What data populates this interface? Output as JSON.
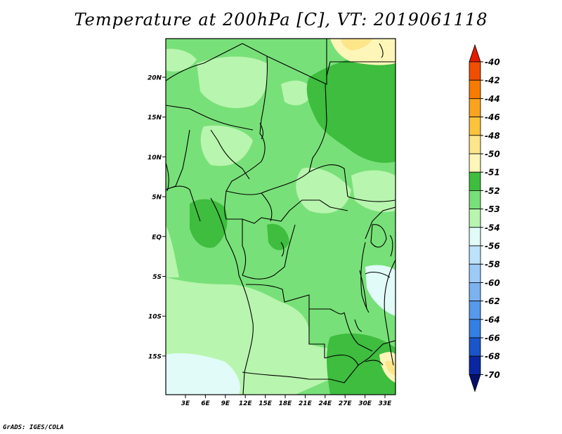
{
  "title": "Temperature at 200hPa [C], VT: 2019061118",
  "credit": "GrADS: IGES/COLA",
  "map": {
    "lat_labels": [
      "20N",
      "15N",
      "10N",
      "5N",
      "EQ",
      "5S",
      "10S",
      "15S"
    ],
    "lon_labels": [
      "3E",
      "6E",
      "9E",
      "12E",
      "15E",
      "18E",
      "21E",
      "24E",
      "27E",
      "30E",
      "33E"
    ]
  },
  "colorbar": {
    "labels": [
      "-40",
      "-42",
      "-44",
      "-46",
      "-48",
      "-50",
      "-51",
      "-52",
      "-53",
      "-54",
      "-56",
      "-58",
      "-60",
      "-62",
      "-64",
      "-66",
      "-68",
      "-70"
    ],
    "colors": [
      "#e31a00",
      "#f04e00",
      "#f77b00",
      "#fba31e",
      "#fcc33c",
      "#fde58a",
      "#fdf6b8",
      "#3ebd3e",
      "#78e078",
      "#b8f5ae",
      "#e0fbf8",
      "#bde2fb",
      "#9ccbf7",
      "#7ab3f0",
      "#5799eb",
      "#337fe3",
      "#1a55c9",
      "#0a27a1",
      "#04116b"
    ]
  }
}
